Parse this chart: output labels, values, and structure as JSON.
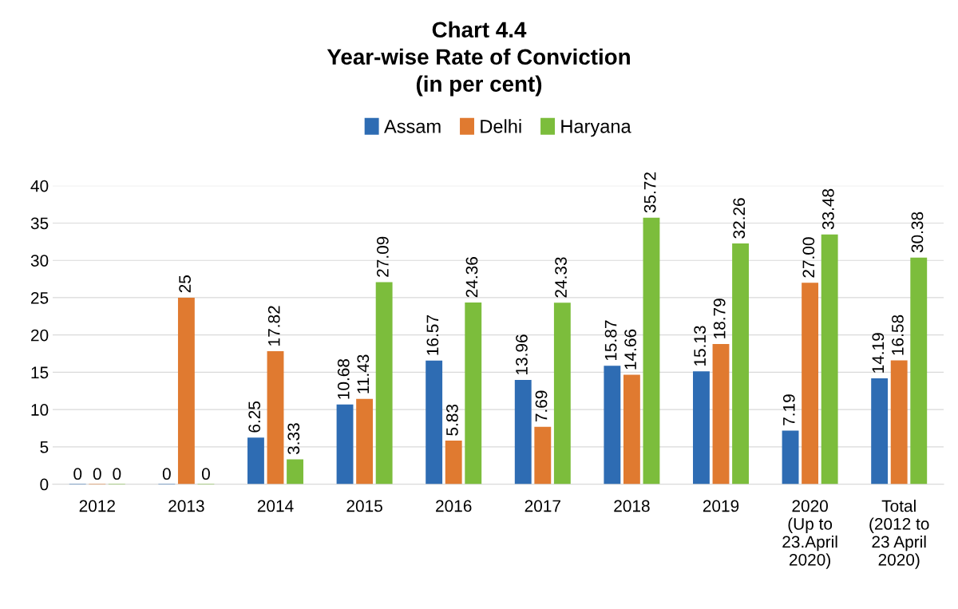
{
  "chart_data": {
    "type": "bar",
    "title": "Chart 4.4\nYear-wise Rate of Conviction\n(in per cent)",
    "categories": [
      "2012",
      "2013",
      "2014",
      "2015",
      "2016",
      "2017",
      "2018",
      "2019",
      "2020\n(Up to\n23.April\n2020)",
      "Total\n(2012 to\n23 April\n2020)"
    ],
    "series": [
      {
        "name": "Assam",
        "color": "#2e6cb3",
        "values": [
          0,
          0,
          6.25,
          10.68,
          16.57,
          13.96,
          15.87,
          15.13,
          7.19,
          14.19
        ],
        "value_labels": [
          "0",
          "0",
          "6.25",
          "10.68",
          "16.57",
          "13.96",
          "15.87",
          "15.13",
          "7.19",
          "14.19"
        ]
      },
      {
        "name": "Delhi",
        "color": "#e07a30",
        "values": [
          0,
          25,
          17.82,
          11.43,
          5.83,
          7.69,
          14.66,
          18.79,
          27.0,
          16.58
        ],
        "value_labels": [
          "0",
          "25",
          "17.82",
          "11.43",
          "5.83",
          "7.69",
          "14.66",
          "18.79",
          "27.00",
          "16.58"
        ]
      },
      {
        "name": "Haryana",
        "color": "#7cbd3c",
        "values": [
          0,
          0,
          3.33,
          27.09,
          24.36,
          24.33,
          35.72,
          32.26,
          33.48,
          30.38
        ],
        "value_labels": [
          "0",
          "0",
          "3.33",
          "27.09",
          "24.36",
          "24.33",
          "35.72",
          "32.26",
          "33.48",
          "30.38"
        ]
      }
    ],
    "ylim": [
      0,
      40
    ],
    "yticks": [
      0,
      5,
      10,
      15,
      20,
      25,
      30,
      35,
      40
    ],
    "grid": "y",
    "legend": "top"
  }
}
